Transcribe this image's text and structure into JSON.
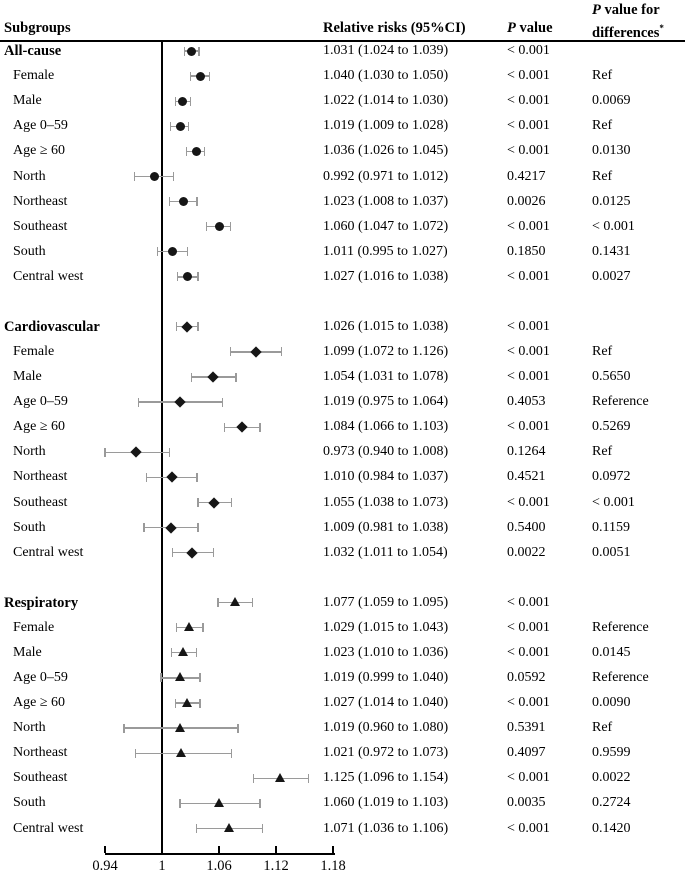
{
  "header": {
    "subgroups": "Subgroups",
    "relative_risks": "Relative risks (95%CI)",
    "p_prefix": "P",
    "p_suffix": " value",
    "p_diff_prefix": "P",
    "p_diff_line1_suffix": " value for",
    "p_diff_line2": "differences",
    "p_diff_sup": "*"
  },
  "chart_data": {
    "type": "scatter",
    "subtype": "forest-plot",
    "title": "",
    "xlabel": "",
    "ylabel": "",
    "axis": {
      "xlim": [
        0.94,
        1.18
      ],
      "tick_values": [
        0.94,
        1.0,
        1.06,
        1.12,
        1.18
      ],
      "tick_labels": [
        "0.94",
        "1",
        "1.06",
        "1.12",
        "1.18"
      ],
      "ref_line": 1.0,
      "grid": false
    },
    "marker_color": "#161616",
    "whisker_color": "#9a9a9a",
    "groups": [
      {
        "name": "All-cause",
        "marker": "circle",
        "rows": [
          {
            "label": "All-cause",
            "bold": true,
            "est": 1.031,
            "lo": 1.024,
            "hi": 1.039,
            "rr_text": "1.031 (1.024 to 1.039)",
            "p": "< 0.001",
            "p_diff": ""
          },
          {
            "label": "Female",
            "bold": false,
            "est": 1.04,
            "lo": 1.03,
            "hi": 1.05,
            "rr_text": "1.040 (1.030 to 1.050)",
            "p": "< 0.001",
            "p_diff": "Ref"
          },
          {
            "label": "Male",
            "bold": false,
            "est": 1.022,
            "lo": 1.014,
            "hi": 1.03,
            "rr_text": "1.022 (1.014 to 1.030)",
            "p": "< 0.001",
            "p_diff": "0.0069"
          },
          {
            "label": "Age 0–59",
            "bold": false,
            "est": 1.019,
            "lo": 1.009,
            "hi": 1.028,
            "rr_text": "1.019 (1.009 to 1.028)",
            "p": "< 0.001",
            "p_diff": "Ref"
          },
          {
            "label": "Age ≥ 60",
            "bold": false,
            "est": 1.036,
            "lo": 1.026,
            "hi": 1.045,
            "rr_text": "1.036 (1.026 to 1.045)",
            "p": "< 0.001",
            "p_diff": "0.0130"
          },
          {
            "label": "North",
            "bold": false,
            "est": 0.992,
            "lo": 0.971,
            "hi": 1.012,
            "rr_text": "0.992 (0.971 to 1.012)",
            "p": "0.4217",
            "p_diff": "Ref"
          },
          {
            "label": "Northeast",
            "bold": false,
            "est": 1.023,
            "lo": 1.008,
            "hi": 1.037,
            "rr_text": "1.023 (1.008 to 1.037)",
            "p": "0.0026",
            "p_diff": "0.0125"
          },
          {
            "label": "Southeast",
            "bold": false,
            "est": 1.06,
            "lo": 1.047,
            "hi": 1.072,
            "rr_text": "1.060 (1.047 to 1.072)",
            "p": "< 0.001",
            "p_diff": "< 0.001"
          },
          {
            "label": "South",
            "bold": false,
            "est": 1.011,
            "lo": 0.995,
            "hi": 1.027,
            "rr_text": "1.011 (0.995 to 1.027)",
            "p": "0.1850",
            "p_diff": "0.1431"
          },
          {
            "label": "Central west",
            "bold": false,
            "est": 1.027,
            "lo": 1.016,
            "hi": 1.038,
            "rr_text": "1.027 (1.016 to 1.038)",
            "p": "< 0.001",
            "p_diff": "0.0027"
          }
        ]
      },
      {
        "name": "Cardiovascular",
        "marker": "diamond",
        "rows": [
          {
            "label": "Cardiovascular",
            "bold": true,
            "est": 1.026,
            "lo": 1.015,
            "hi": 1.038,
            "rr_text": "1.026 (1.015 to 1.038)",
            "p": "< 0.001",
            "p_diff": ""
          },
          {
            "label": "Female",
            "bold": false,
            "est": 1.099,
            "lo": 1.072,
            "hi": 1.126,
            "rr_text": "1.099 (1.072 to 1.126)",
            "p": "< 0.001",
            "p_diff": "Ref"
          },
          {
            "label": "Male",
            "bold": false,
            "est": 1.054,
            "lo": 1.031,
            "hi": 1.078,
            "rr_text": "1.054 (1.031 to 1.078)",
            "p": "< 0.001",
            "p_diff": "0.5650"
          },
          {
            "label": "Age 0–59",
            "bold": false,
            "est": 1.019,
            "lo": 0.975,
            "hi": 1.064,
            "rr_text": "1.019 (0.975 to 1.064)",
            "p": "0.4053",
            "p_diff": "Reference"
          },
          {
            "label": "Age ≥ 60",
            "bold": false,
            "est": 1.084,
            "lo": 1.066,
            "hi": 1.103,
            "rr_text": "1.084 (1.066 to 1.103)",
            "p": "< 0.001",
            "p_diff": "0.5269"
          },
          {
            "label": "North",
            "bold": false,
            "est": 0.973,
            "lo": 0.94,
            "hi": 1.008,
            "rr_text": "0.973 (0.940 to 1.008)",
            "p": "0.1264",
            "p_diff": "Ref"
          },
          {
            "label": "Northeast",
            "bold": false,
            "est": 1.01,
            "lo": 0.984,
            "hi": 1.037,
            "rr_text": "1.010 (0.984 to 1.037)",
            "p": "0.4521",
            "p_diff": "0.0972"
          },
          {
            "label": "Southeast",
            "bold": false,
            "est": 1.055,
            "lo": 1.038,
            "hi": 1.073,
            "rr_text": "1.055 (1.038 to 1.073)",
            "p": "< 0.001",
            "p_diff": "< 0.001"
          },
          {
            "label": "South",
            "bold": false,
            "est": 1.009,
            "lo": 0.981,
            "hi": 1.038,
            "rr_text": "1.009 (0.981 to 1.038)",
            "p": "0.5400",
            "p_diff": "0.1159"
          },
          {
            "label": "Central west",
            "bold": false,
            "est": 1.032,
            "lo": 1.011,
            "hi": 1.054,
            "rr_text": "1.032 (1.011 to 1.054)",
            "p": "0.0022",
            "p_diff": "0.0051"
          }
        ]
      },
      {
        "name": "Respiratory",
        "marker": "triangle",
        "rows": [
          {
            "label": "Respiratory",
            "bold": true,
            "est": 1.077,
            "lo": 1.059,
            "hi": 1.095,
            "rr_text": "1.077 (1.059 to 1.095)",
            "p": "< 0.001",
            "p_diff": ""
          },
          {
            "label": "Female",
            "bold": false,
            "est": 1.029,
            "lo": 1.015,
            "hi": 1.043,
            "rr_text": "1.029 (1.015 to 1.043)",
            "p": "< 0.001",
            "p_diff": "Reference"
          },
          {
            "label": "Male",
            "bold": false,
            "est": 1.023,
            "lo": 1.01,
            "hi": 1.036,
            "rr_text": "1.023 (1.010 to 1.036)",
            "p": "< 0.001",
            "p_diff": "0.0145"
          },
          {
            "label": "Age 0–59",
            "bold": false,
            "est": 1.019,
            "lo": 0.999,
            "hi": 1.04,
            "rr_text": "1.019 (0.999 to 1.040)",
            "p": "0.0592",
            "p_diff": "Reference"
          },
          {
            "label": "Age ≥ 60",
            "bold": false,
            "est": 1.027,
            "lo": 1.014,
            "hi": 1.04,
            "rr_text": "1.027 (1.014 to 1.040)",
            "p": "< 0.001",
            "p_diff": "0.0090"
          },
          {
            "label": "North",
            "bold": false,
            "est": 1.019,
            "lo": 0.96,
            "hi": 1.08,
            "rr_text": "1.019 (0.960 to 1.080)",
            "p": "0.5391",
            "p_diff": "Ref"
          },
          {
            "label": "Northeast",
            "bold": false,
            "est": 1.021,
            "lo": 0.972,
            "hi": 1.073,
            "rr_text": "1.021 (0.972 to 1.073)",
            "p": "0.4097",
            "p_diff": "0.9599"
          },
          {
            "label": "Southeast",
            "bold": false,
            "est": 1.125,
            "lo": 1.096,
            "hi": 1.154,
            "rr_text": "1.125 (1.096 to 1.154)",
            "p": "< 0.001",
            "p_diff": "0.0022"
          },
          {
            "label": "South",
            "bold": false,
            "est": 1.06,
            "lo": 1.019,
            "hi": 1.103,
            "rr_text": "1.060 (1.019 to 1.103)",
            "p": "0.0035",
            "p_diff": "0.2724"
          },
          {
            "label": "Central west",
            "bold": false,
            "est": 1.071,
            "lo": 1.036,
            "hi": 1.106,
            "rr_text": "1.071 (1.036 to 1.106)",
            "p": "< 0.001",
            "p_diff": "0.1420"
          }
        ]
      }
    ]
  }
}
